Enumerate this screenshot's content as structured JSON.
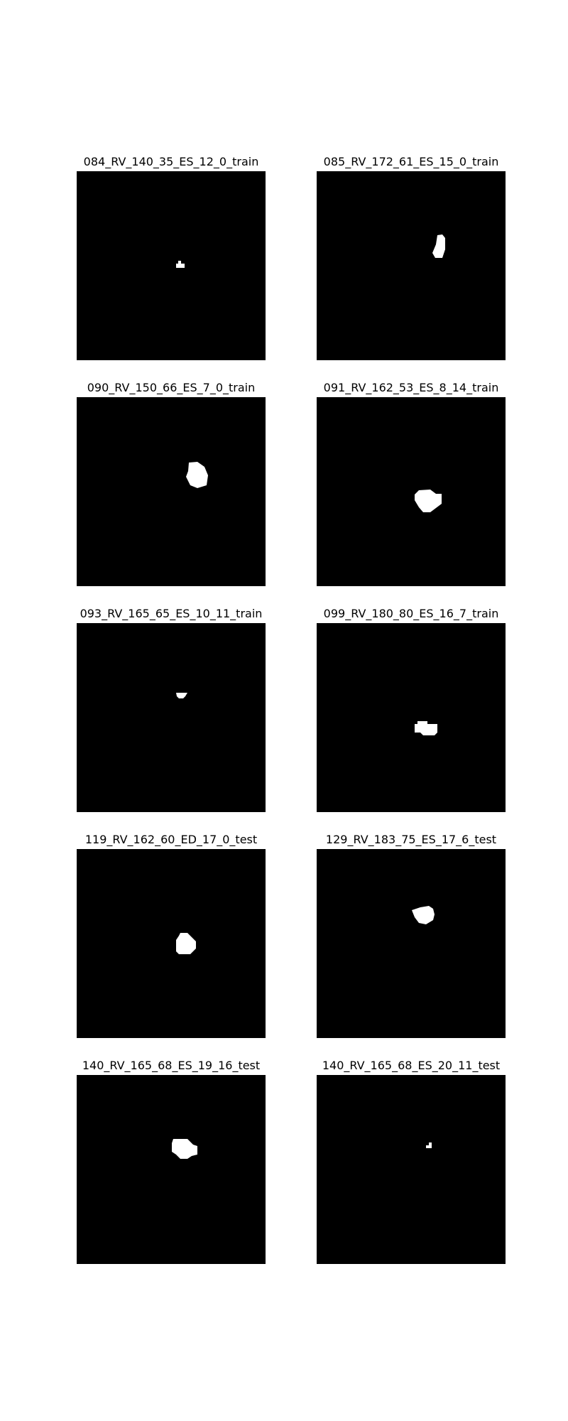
{
  "panels": [
    {
      "title": "084_RV_140_35_ES_12_0_train"
    },
    {
      "title": "085_RV_172_61_ES_15_0_train"
    },
    {
      "title": "090_RV_150_66_ES_7_0_train"
    },
    {
      "title": "091_RV_162_53_ES_8_14_train"
    },
    {
      "title": "093_RV_165_65_ES_10_11_train"
    },
    {
      "title": "099_RV_180_80_ES_16_7_train"
    },
    {
      "title": "119_RV_162_60_ED_17_0_test"
    },
    {
      "title": "129_RV_183_75_ES_17_6_test"
    },
    {
      "title": "140_RV_165_68_ES_19_16_test"
    },
    {
      "title": "140_RV_165_68_ES_20_11_test"
    }
  ],
  "colors": {
    "background": "#000000",
    "mask": "#ffffff"
  }
}
